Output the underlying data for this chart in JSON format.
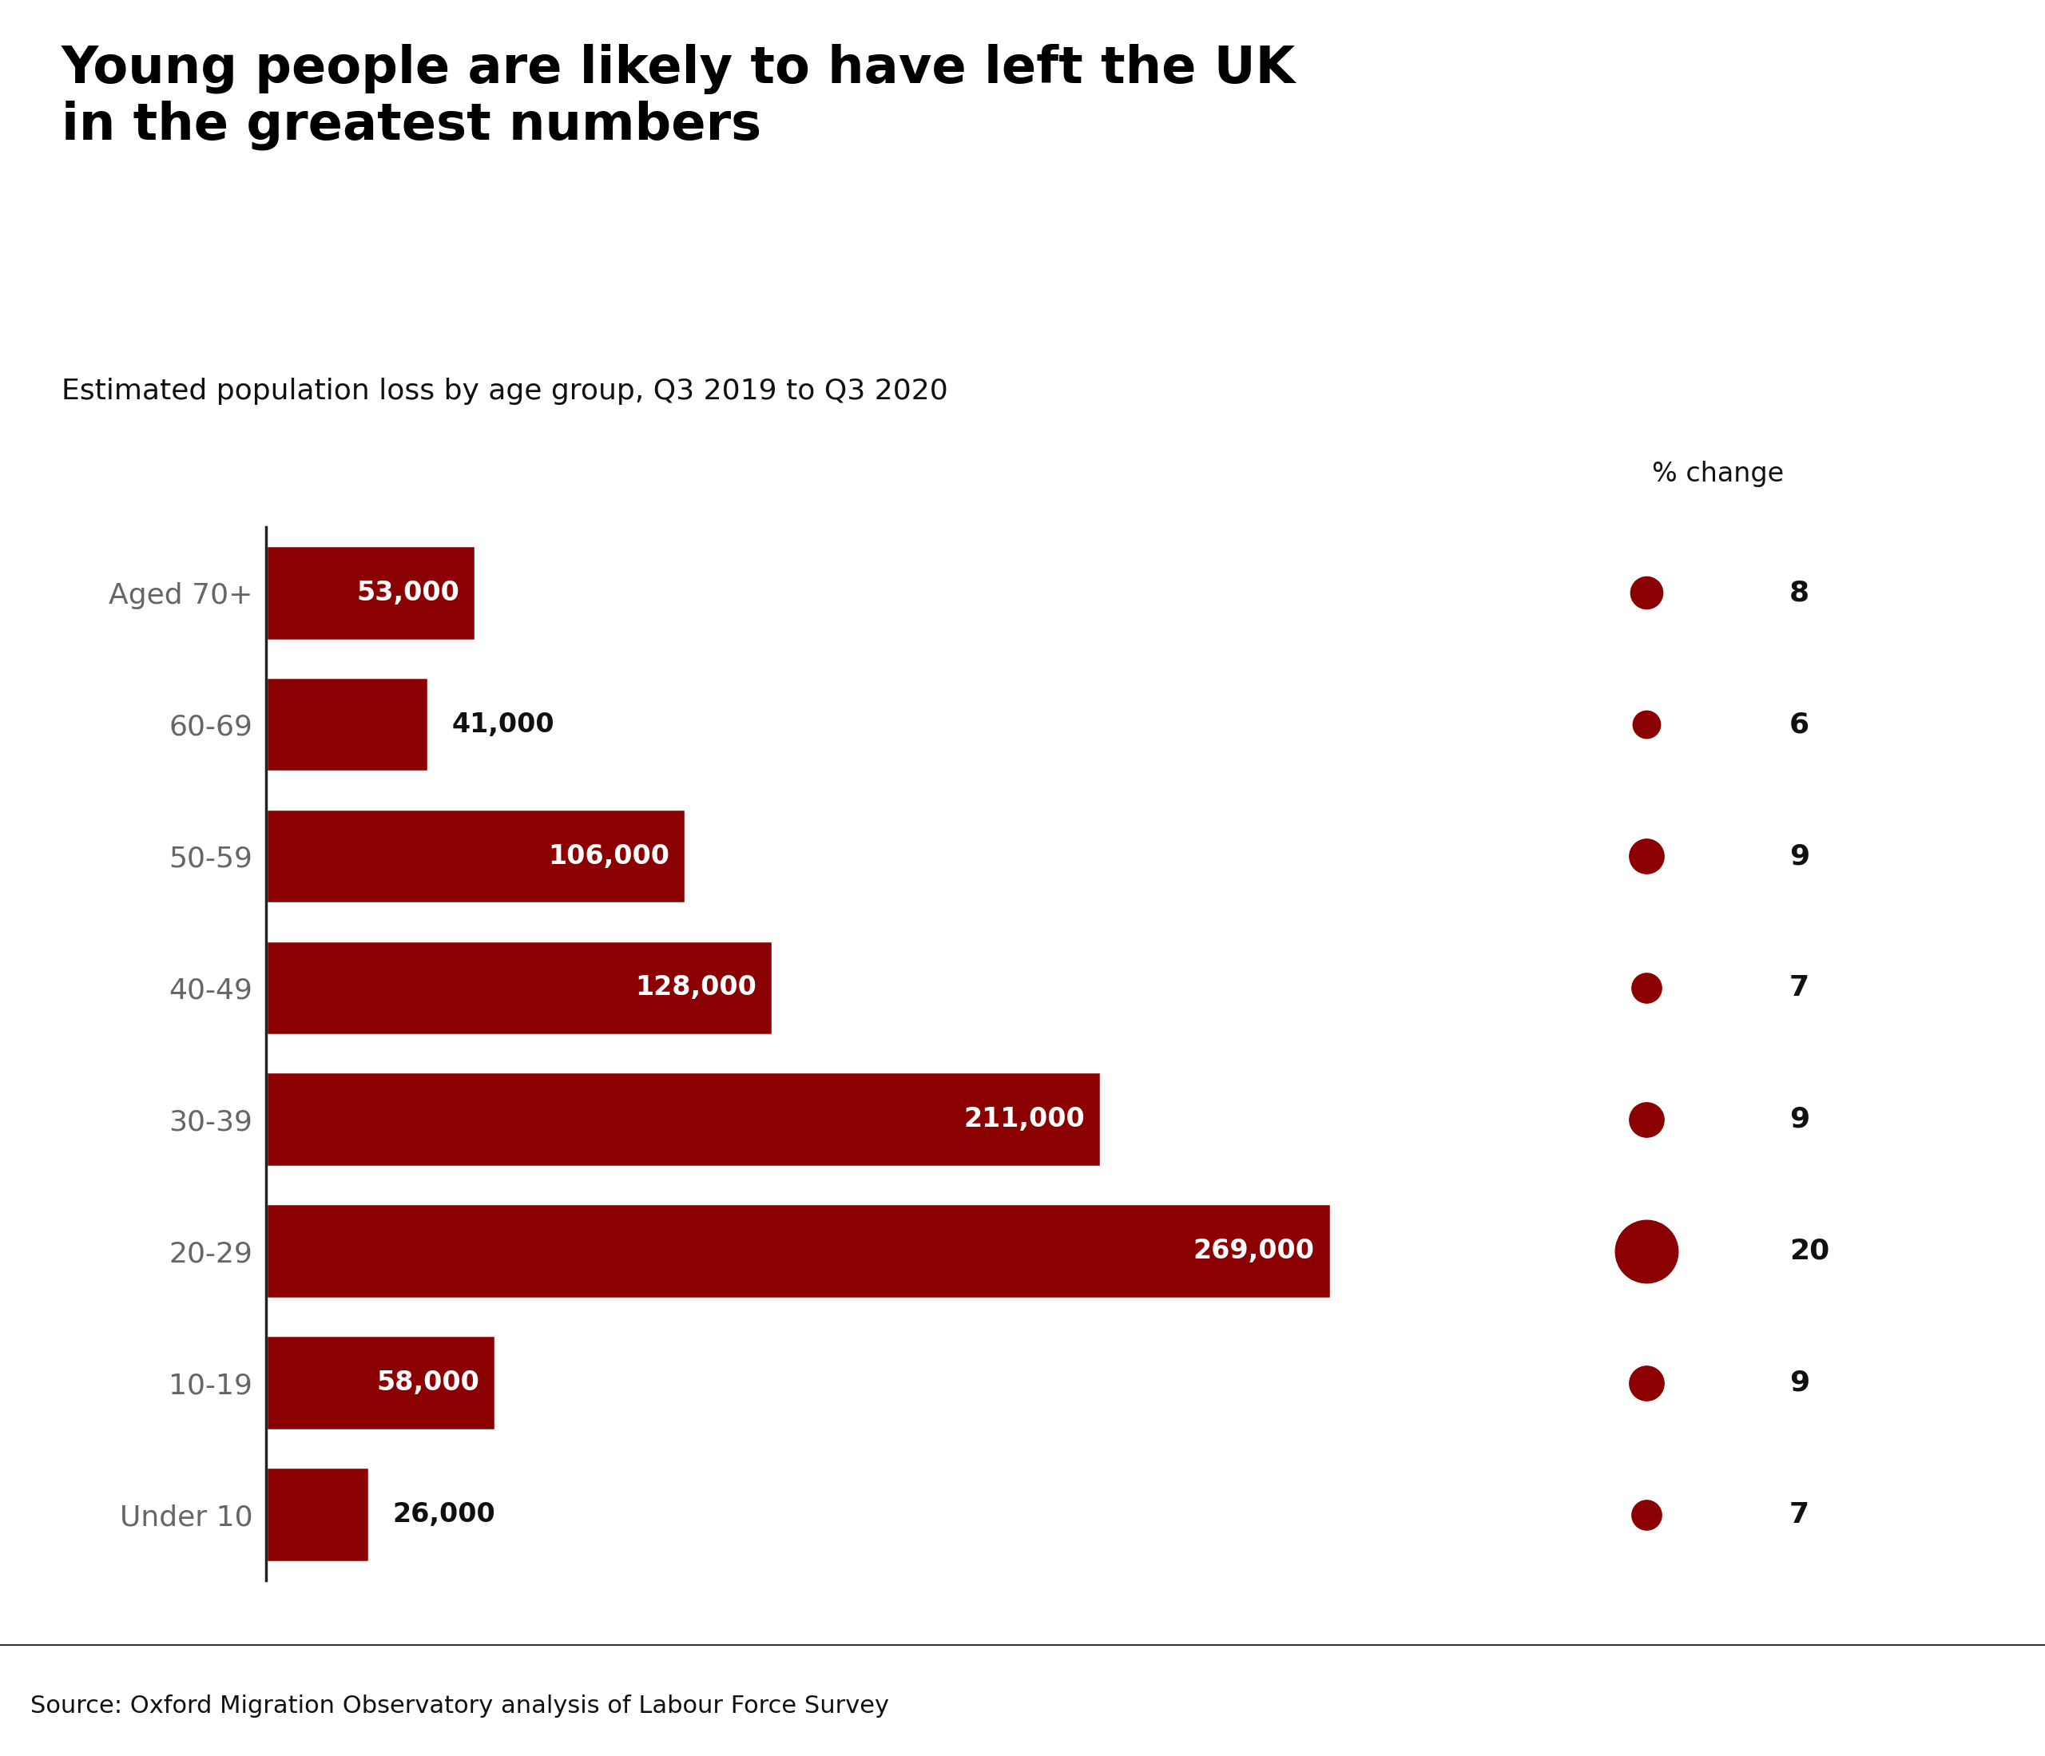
{
  "title": "Young people are likely to have left the UK\nin the greatest numbers",
  "subtitle": "Estimated population loss by age group, Q3 2019 to Q3 2020",
  "source": "Source: Oxford Migration Observatory analysis of Labour Force Survey",
  "categories": [
    "Aged 70+",
    "60-69",
    "50-59",
    "40-49",
    "30-39",
    "20-29",
    "10-19",
    "Under 10"
  ],
  "values": [
    53000,
    41000,
    106000,
    128000,
    211000,
    269000,
    58000,
    26000
  ],
  "pct_change": [
    8,
    6,
    9,
    7,
    9,
    20,
    9,
    7
  ],
  "bar_labels": [
    "53,000",
    "41,000",
    "106,000",
    "128,000",
    "211,000",
    "269,000",
    "58,000",
    "26,000"
  ],
  "label_inside": [
    true,
    false,
    true,
    true,
    true,
    true,
    true,
    false
  ],
  "bar_color": "#8B0000",
  "text_color_dark": "#111111",
  "text_color_gray": "#666666",
  "background_color": "#ffffff",
  "footer_color": "#f2f2f2",
  "footer_line_color": "#333333",
  "pct_label_header": "% change",
  "title_fontsize": 46,
  "subtitle_fontsize": 26,
  "label_fontsize": 24,
  "tick_fontsize": 26,
  "source_fontsize": 22,
  "pct_fontsize": 26,
  "pct_header_fontsize": 24,
  "max_bubble_size": 3200,
  "min_bubble_size": 280,
  "max_pct": 20,
  "xlim_max": 310000
}
